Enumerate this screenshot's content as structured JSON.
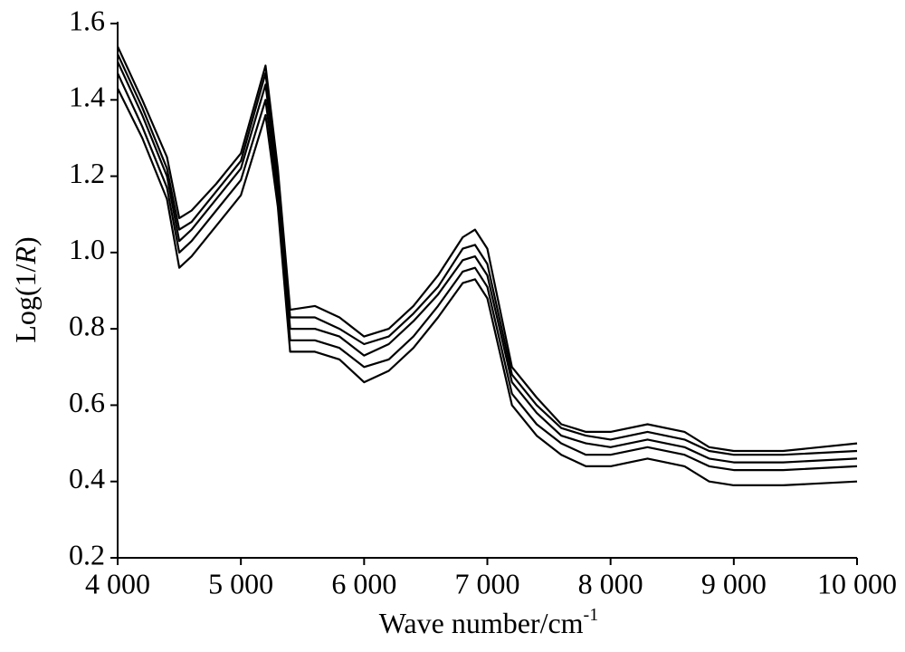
{
  "chart_data": {
    "type": "line",
    "x_label": [
      "Wave number/cm",
      "-1"
    ],
    "y_label": [
      "Log(1/",
      "R",
      ")"
    ],
    "x": [
      4000,
      4200,
      4400,
      4500,
      4600,
      4800,
      5000,
      5200,
      5300,
      5400,
      5600,
      5800,
      6000,
      6200,
      6400,
      6600,
      6800,
      6900,
      7000,
      7200,
      7400,
      7600,
      7800,
      8000,
      8300,
      8600,
      8800,
      9000,
      9400,
      10000
    ],
    "series": [
      {
        "color": "#000000",
        "values": [
          1.54,
          1.4,
          1.25,
          1.09,
          1.11,
          1.18,
          1.26,
          1.49,
          1.22,
          0.85,
          0.86,
          0.83,
          0.78,
          0.8,
          0.86,
          0.94,
          1.04,
          1.06,
          1.01,
          0.7,
          0.62,
          0.55,
          0.53,
          0.53,
          0.55,
          0.53,
          0.49,
          0.48,
          0.48,
          0.5
        ]
      },
      {
        "color": "#000000",
        "values": [
          1.52,
          1.38,
          1.22,
          1.06,
          1.08,
          1.16,
          1.24,
          1.47,
          1.2,
          0.83,
          0.83,
          0.8,
          0.76,
          0.78,
          0.84,
          0.91,
          1.01,
          1.02,
          0.97,
          0.68,
          0.6,
          0.54,
          0.52,
          0.51,
          0.53,
          0.51,
          0.48,
          0.47,
          0.47,
          0.48
        ]
      },
      {
        "color": "#000000",
        "values": [
          1.5,
          1.36,
          1.2,
          1.03,
          1.06,
          1.14,
          1.22,
          1.44,
          1.18,
          0.8,
          0.8,
          0.78,
          0.73,
          0.76,
          0.82,
          0.89,
          0.98,
          0.99,
          0.94,
          0.66,
          0.58,
          0.52,
          0.5,
          0.49,
          0.51,
          0.49,
          0.46,
          0.45,
          0.45,
          0.46
        ]
      },
      {
        "color": "#000000",
        "values": [
          1.47,
          1.33,
          1.17,
          1.0,
          1.03,
          1.11,
          1.19,
          1.4,
          1.15,
          0.77,
          0.77,
          0.75,
          0.7,
          0.72,
          0.78,
          0.86,
          0.95,
          0.96,
          0.91,
          0.63,
          0.55,
          0.5,
          0.47,
          0.47,
          0.49,
          0.47,
          0.44,
          0.43,
          0.43,
          0.44
        ]
      },
      {
        "color": "#000000",
        "values": [
          1.43,
          1.3,
          1.14,
          0.96,
          0.99,
          1.07,
          1.15,
          1.36,
          1.12,
          0.74,
          0.74,
          0.72,
          0.66,
          0.69,
          0.75,
          0.83,
          0.92,
          0.93,
          0.88,
          0.6,
          0.52,
          0.47,
          0.44,
          0.44,
          0.46,
          0.44,
          0.4,
          0.39,
          0.39,
          0.4
        ]
      }
    ],
    "xlim": [
      4000,
      10000
    ],
    "xticks": [
      {
        "value": 4000,
        "label": "4 000"
      },
      {
        "value": 5000,
        "label": "5 000"
      },
      {
        "value": 6000,
        "label": "6 000"
      },
      {
        "value": 7000,
        "label": "7 000"
      },
      {
        "value": 8000,
        "label": "8 000"
      },
      {
        "value": 9000,
        "label": "9 000"
      },
      {
        "value": 10000,
        "label": "10 000"
      }
    ],
    "ylim": [
      0.2,
      1.6
    ],
    "yticks": [
      0.2,
      0.4,
      0.6,
      0.8,
      {
        "value": 1,
        "label": "1.0"
      },
      1.2,
      1.4,
      1.6
    ],
    "grid": false
  }
}
